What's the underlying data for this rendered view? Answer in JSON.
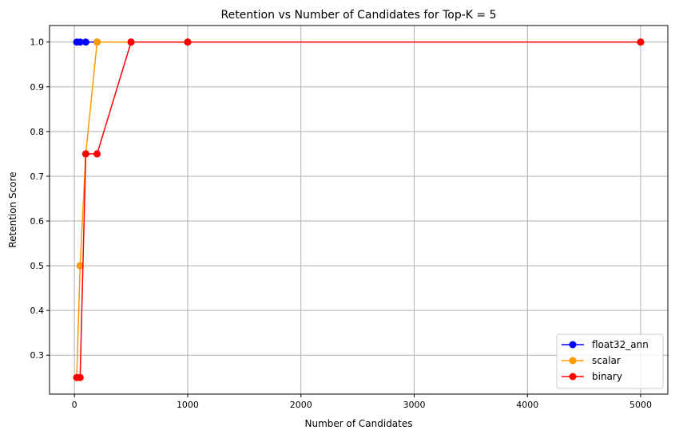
{
  "chart_data": {
    "type": "line",
    "title": "Retention vs Number of Candidates for Top-K = 5",
    "xlabel": "Number of Candidates",
    "ylabel": "Retention Score",
    "xlim": [
      -220,
      5240
    ],
    "ylim": [
      0.213,
      1.037
    ],
    "xticks": [
      0,
      1000,
      2000,
      3000,
      4000,
      5000
    ],
    "yticks": [
      0.3,
      0.4,
      0.5,
      0.6,
      0.7,
      0.8,
      0.9,
      1.0
    ],
    "xtick_labels": [
      "0",
      "1000",
      "2000",
      "3000",
      "4000",
      "5000"
    ],
    "ytick_labels": [
      "0.3",
      "0.4",
      "0.5",
      "0.6",
      "0.7",
      "0.8",
      "0.9",
      "1.0"
    ],
    "grid": true,
    "legend_position": "bottom-right",
    "x": [
      20,
      50,
      100,
      200,
      500,
      1000,
      5000
    ],
    "series": [
      {
        "name": "float32_ann",
        "color": "#0000ff",
        "values": [
          1.0,
          1.0,
          1.0,
          1.0,
          1.0,
          1.0,
          1.0
        ]
      },
      {
        "name": "scalar",
        "color": "#ff9900",
        "values": [
          0.25,
          0.5,
          0.75,
          1.0,
          1.0,
          1.0,
          1.0
        ]
      },
      {
        "name": "binary",
        "color": "#ff0000",
        "values": [
          0.25,
          0.25,
          0.75,
          0.75,
          1.0,
          1.0,
          1.0
        ]
      }
    ]
  }
}
